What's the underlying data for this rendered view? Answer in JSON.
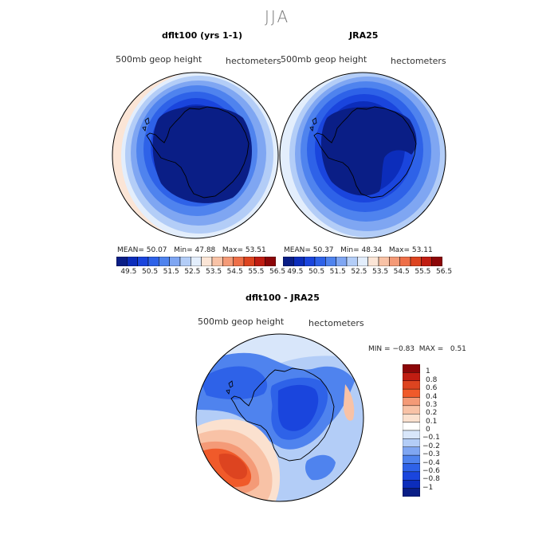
{
  "chart_data": [
    {
      "type": "heatmap",
      "projection": "south-polar-stereographic",
      "season": "JJA",
      "title": "dflt100 (yrs 1-1)",
      "variable": "500mb geop height",
      "units": "hectometers",
      "stats": {
        "mean_label": "MEAN=",
        "mean": "50.07",
        "min_label": "Min=",
        "min": "47.88",
        "max_label": "Max=",
        "max": "53.51"
      },
      "colorbar_ticks": [
        "49.5",
        "50.5",
        "51.5",
        "52.5",
        "53.5",
        "54.5",
        "55.5",
        "56.5"
      ],
      "colorbar_colors": [
        "#0a1e86",
        "#0c2dbb",
        "#1a45dd",
        "#2e62e8",
        "#4f83ee",
        "#7fa6f2",
        "#b3cdf7",
        "#e3eefc",
        "#fbe5d6",
        "#f8c2a6",
        "#f49a77",
        "#ee6f48",
        "#dd4420",
        "#c01d12",
        "#8c0608"
      ]
    },
    {
      "type": "heatmap",
      "projection": "south-polar-stereographic",
      "title": "JRA25",
      "variable": "500mb geop height",
      "units": "hectometers",
      "stats": {
        "mean_label": "MEAN=",
        "mean": "50.37",
        "min_label": "Min=",
        "min": "48.34",
        "max_label": "Max=",
        "max": "53.11"
      },
      "colorbar_ticks": [
        "49.5",
        "50.5",
        "51.5",
        "52.5",
        "53.5",
        "54.5",
        "55.5",
        "56.5"
      ],
      "colorbar_colors": [
        "#0a1e86",
        "#0c2dbb",
        "#1a45dd",
        "#2e62e8",
        "#4f83ee",
        "#7fa6f2",
        "#b3cdf7",
        "#e3eefc",
        "#fbe5d6",
        "#f8c2a6",
        "#f49a77",
        "#ee6f48",
        "#dd4420",
        "#c01d12",
        "#8c0608"
      ]
    },
    {
      "type": "heatmap",
      "projection": "south-polar-stereographic",
      "title": "dflt100 - JRA25",
      "variable": "500mb geop height",
      "units": "hectometers",
      "stats": {
        "min_label": "MIN =",
        "min": "−0.83",
        "max_label": "MAX =",
        "max": "0.51"
      },
      "colorbar_ticks": [
        "1",
        "0.8",
        "0.6",
        "0.4",
        "0.3",
        "0.2",
        "0.1",
        "0",
        "−0.1",
        "−0.2",
        "−0.3",
        "−0.4",
        "−0.6",
        "−0.8",
        "−1"
      ],
      "colorbar_colors": [
        "#8c0608",
        "#c01d12",
        "#dd4420",
        "#f05a2a",
        "#f49a77",
        "#f8c2a6",
        "#fbe1cf",
        "#ffffff",
        "#d8e6fa",
        "#b3cdf7",
        "#7fa6f2",
        "#4f83ee",
        "#2e62e8",
        "#1a45dd",
        "#0c2dbb",
        "#0a1e86"
      ]
    }
  ]
}
